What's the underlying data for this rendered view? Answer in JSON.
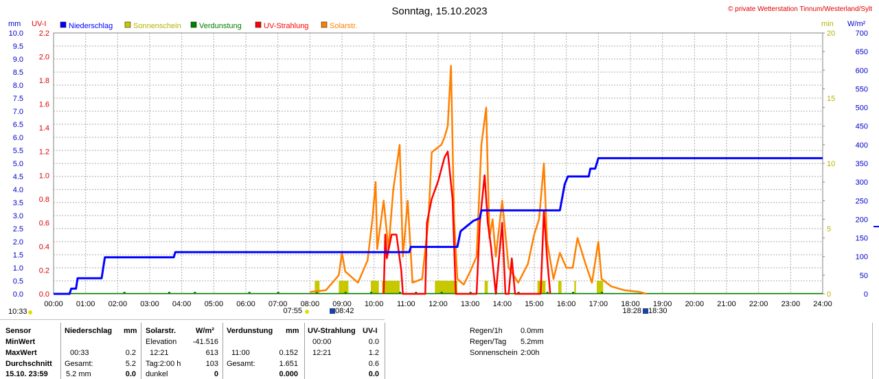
{
  "header": {
    "title": "Sonntag, 15.10.2023",
    "copyright": "© private Wetterstation Tinnum/Westerland/Sylt"
  },
  "axis_units": {
    "mm": "mm",
    "uvi": "UV-I",
    "min": "min",
    "wm2": "W/m²"
  },
  "legend": [
    {
      "label": "Niederschlag",
      "color": "#0000ff"
    },
    {
      "label": "Sonnenschein",
      "color": "#c8c800"
    },
    {
      "label": "Verdunstung",
      "color": "#008000"
    },
    {
      "label": "UV-Strahlung",
      "color": "#ff0000"
    },
    {
      "label": "Solarstr.",
      "color": "#ff8000"
    }
  ],
  "time_markers": {
    "left_time": "10:33",
    "sunrise_a": "07:55",
    "sunrise_b": "08:42",
    "sunset_a": "18:28",
    "sunset_b": "18:30"
  },
  "chart_data": {
    "type": "line",
    "x_range": [
      "00:00",
      "24:00"
    ],
    "x_ticks": [
      "00:00",
      "01:00",
      "02:00",
      "03:00",
      "04:00",
      "05:00",
      "06:00",
      "07:00",
      "08:00",
      "09:00",
      "10:00",
      "11:00",
      "12:00",
      "13:00",
      "14:00",
      "15:00",
      "16:00",
      "17:00",
      "18:00",
      "19:00",
      "20:00",
      "21:00",
      "22:00",
      "23:00",
      "24:00"
    ],
    "axes": {
      "mm": {
        "ticks": [
          "0.0",
          "0.5",
          "1.0",
          "1.5",
          "2.0",
          "2.5",
          "3.0",
          "3.5",
          "4.0",
          "4.5",
          "5.0",
          "5.5",
          "6.0",
          "6.5",
          "7.0",
          "7.5",
          "8.0",
          "8.5",
          "9.0",
          "9.5",
          "10.0"
        ],
        "ylim": [
          0,
          10
        ]
      },
      "uvi": {
        "ticks": [
          "0.0",
          "0.2",
          "0.4",
          "0.6",
          "0.8",
          "1.0",
          "1.2",
          "1.4",
          "1.6",
          "1.8",
          "2.0",
          "2.2"
        ],
        "ylim": [
          0,
          2.2
        ]
      },
      "min": {
        "ticks": [
          "0",
          "5",
          "10",
          "15",
          "20"
        ],
        "ylim": [
          0,
          20
        ]
      },
      "wm2": {
        "ticks": [
          "0",
          "50",
          "100",
          "150",
          "200",
          "250",
          "300",
          "350",
          "400",
          "450",
          "500",
          "550",
          "600",
          "650",
          "700"
        ],
        "ylim": [
          0,
          700
        ]
      }
    },
    "grid": true,
    "series": [
      {
        "name": "Niederschlag",
        "axis": "mm",
        "color": "#0000ff",
        "points": [
          [
            0,
            0
          ],
          [
            0.5,
            0
          ],
          [
            0.55,
            0.2
          ],
          [
            0.7,
            0.2
          ],
          [
            0.75,
            0.6
          ],
          [
            1.5,
            0.6
          ],
          [
            1.6,
            1.4
          ],
          [
            3.75,
            1.4
          ],
          [
            3.8,
            1.6
          ],
          [
            11.1,
            1.6
          ],
          [
            11.15,
            1.8
          ],
          [
            12.6,
            1.8
          ],
          [
            12.7,
            2.4
          ],
          [
            12.9,
            2.6
          ],
          [
            13.1,
            2.8
          ],
          [
            13.3,
            2.9
          ],
          [
            13.35,
            3.2
          ],
          [
            15.8,
            3.2
          ],
          [
            15.95,
            4.2
          ],
          [
            16.05,
            4.5
          ],
          [
            16.7,
            4.5
          ],
          [
            16.75,
            4.8
          ],
          [
            16.9,
            4.8
          ],
          [
            17.0,
            5.2
          ],
          [
            24,
            5.2
          ]
        ]
      },
      {
        "name": "Solarstr.",
        "axis": "wm2",
        "color": "#ff8000",
        "points": [
          [
            8.0,
            5
          ],
          [
            8.5,
            10
          ],
          [
            8.9,
            50
          ],
          [
            9.0,
            110
          ],
          [
            9.1,
            60
          ],
          [
            9.5,
            30
          ],
          [
            9.8,
            90
          ],
          [
            9.95,
            200
          ],
          [
            10.05,
            300
          ],
          [
            10.1,
            120
          ],
          [
            10.3,
            250
          ],
          [
            10.45,
            120
          ],
          [
            10.6,
            280
          ],
          [
            10.8,
            400
          ],
          [
            10.9,
            100
          ],
          [
            11.05,
            250
          ],
          [
            11.2,
            30
          ],
          [
            11.5,
            40
          ],
          [
            11.7,
            200
          ],
          [
            11.8,
            380
          ],
          [
            11.95,
            390
          ],
          [
            12.1,
            400
          ],
          [
            12.2,
            420
          ],
          [
            12.3,
            450
          ],
          [
            12.4,
            612
          ],
          [
            12.5,
            200
          ],
          [
            12.6,
            40
          ],
          [
            12.8,
            25
          ],
          [
            13.0,
            60
          ],
          [
            13.2,
            100
          ],
          [
            13.35,
            400
          ],
          [
            13.5,
            500
          ],
          [
            13.6,
            150
          ],
          [
            13.7,
            200
          ],
          [
            13.8,
            100
          ],
          [
            14.0,
            250
          ],
          [
            14.2,
            70
          ],
          [
            14.5,
            30
          ],
          [
            14.8,
            80
          ],
          [
            15.0,
            160
          ],
          [
            15.15,
            200
          ],
          [
            15.3,
            350
          ],
          [
            15.4,
            140
          ],
          [
            15.6,
            40
          ],
          [
            15.8,
            110
          ],
          [
            16.0,
            70
          ],
          [
            16.2,
            70
          ],
          [
            16.35,
            150
          ],
          [
            16.6,
            80
          ],
          [
            16.8,
            30
          ],
          [
            17.0,
            140
          ],
          [
            17.1,
            40
          ],
          [
            17.4,
            20
          ],
          [
            17.8,
            10
          ],
          [
            18.3,
            5
          ],
          [
            18.5,
            0
          ]
        ]
      },
      {
        "name": "UV-Strahlung",
        "axis": "uvi",
        "color": "#ff0000",
        "points": [
          [
            10.3,
            0
          ],
          [
            10.35,
            0.5
          ],
          [
            10.4,
            0.3
          ],
          [
            10.55,
            0.5
          ],
          [
            10.7,
            0.5
          ],
          [
            10.85,
            0.2
          ],
          [
            10.9,
            0
          ],
          [
            11.6,
            0
          ],
          [
            11.65,
            0.6
          ],
          [
            11.8,
            0.8
          ],
          [
            12.0,
            0.95
          ],
          [
            12.2,
            1.15
          ],
          [
            12.3,
            1.2
          ],
          [
            12.45,
            0.8
          ],
          [
            12.55,
            0
          ],
          [
            13.2,
            0
          ],
          [
            13.3,
            0.6
          ],
          [
            13.45,
            1.0
          ],
          [
            13.55,
            0.6
          ],
          [
            13.65,
            0.4
          ],
          [
            13.8,
            0
          ],
          [
            14.0,
            0.6
          ],
          [
            14.1,
            0
          ],
          [
            14.2,
            0
          ],
          [
            14.3,
            0.3
          ],
          [
            14.4,
            0
          ],
          [
            15.2,
            0
          ],
          [
            15.3,
            0.7
          ],
          [
            15.4,
            0.3
          ],
          [
            15.5,
            0
          ]
        ]
      },
      {
        "name": "Sonnenschein",
        "axis": "min",
        "type": "bar",
        "color": "#c8c800",
        "bars": [
          [
            8.15,
            8.3,
            1
          ],
          [
            8.9,
            9.2,
            1
          ],
          [
            9.9,
            10.15,
            1
          ],
          [
            10.25,
            10.8,
            1
          ],
          [
            11.9,
            12.6,
            1
          ],
          [
            13.45,
            13.55,
            1
          ],
          [
            15.1,
            15.35,
            1
          ],
          [
            15.75,
            15.85,
            1
          ],
          [
            16.25,
            16.3,
            1
          ],
          [
            16.95,
            17.15,
            1
          ]
        ]
      }
    ],
    "evaporation_markers": [
      0.5,
      2.2,
      3.6,
      4.4,
      6.1,
      7.0,
      8.2,
      9.1,
      9.9,
      10.8,
      11.3,
      12.1,
      13.0,
      13.8,
      14.5,
      15.4,
      16.2,
      17.1
    ]
  },
  "stats": {
    "header": {
      "sensor": "Sensor",
      "niederschlag": "Niederschlag",
      "mm": "mm",
      "solar": "Solarstr.",
      "wm2": "W/m²",
      "verdunstung": "Verdunstung",
      "vmm": "mm",
      "uv": "UV-Strahlung",
      "uvi": "UV-I"
    },
    "row_min": {
      "label": "MinWert",
      "solar_label": "Elevation",
      "solar_value": "-41.516",
      "uv_time": "00:00",
      "uv_value": "0.0"
    },
    "row_max": {
      "label": "MaxWert",
      "n_time": "00:33",
      "n_value": "0.2",
      "solar_time": "12:21",
      "solar_value": "613",
      "v_time": "11:00",
      "v_value": "0.152",
      "uv_time": "12:21",
      "uv_value": "1.2"
    },
    "row_avg": {
      "label": "Durchschnitt",
      "n_label": "Gesamt:",
      "n_value": "5.2",
      "solar_label": "Tag:2:00 h",
      "solar_value": "103",
      "v_label": "Gesamt:",
      "v_value": "1.651",
      "uv_value": "0.6"
    },
    "row_last": {
      "label": "15.10. 23:59",
      "n_text": "5.2 mm",
      "n_value": "0.0",
      "solar_label": "dunkel",
      "solar_value": "0",
      "v_value": "0.000",
      "uv_value": "0.0"
    },
    "extra": [
      {
        "label": "Regen/1h",
        "value": "0.0mm"
      },
      {
        "label": "Regen/Tag",
        "value": "5.2mm"
      },
      {
        "label": "Sonnenschein",
        "value": "2:00h"
      }
    ]
  }
}
